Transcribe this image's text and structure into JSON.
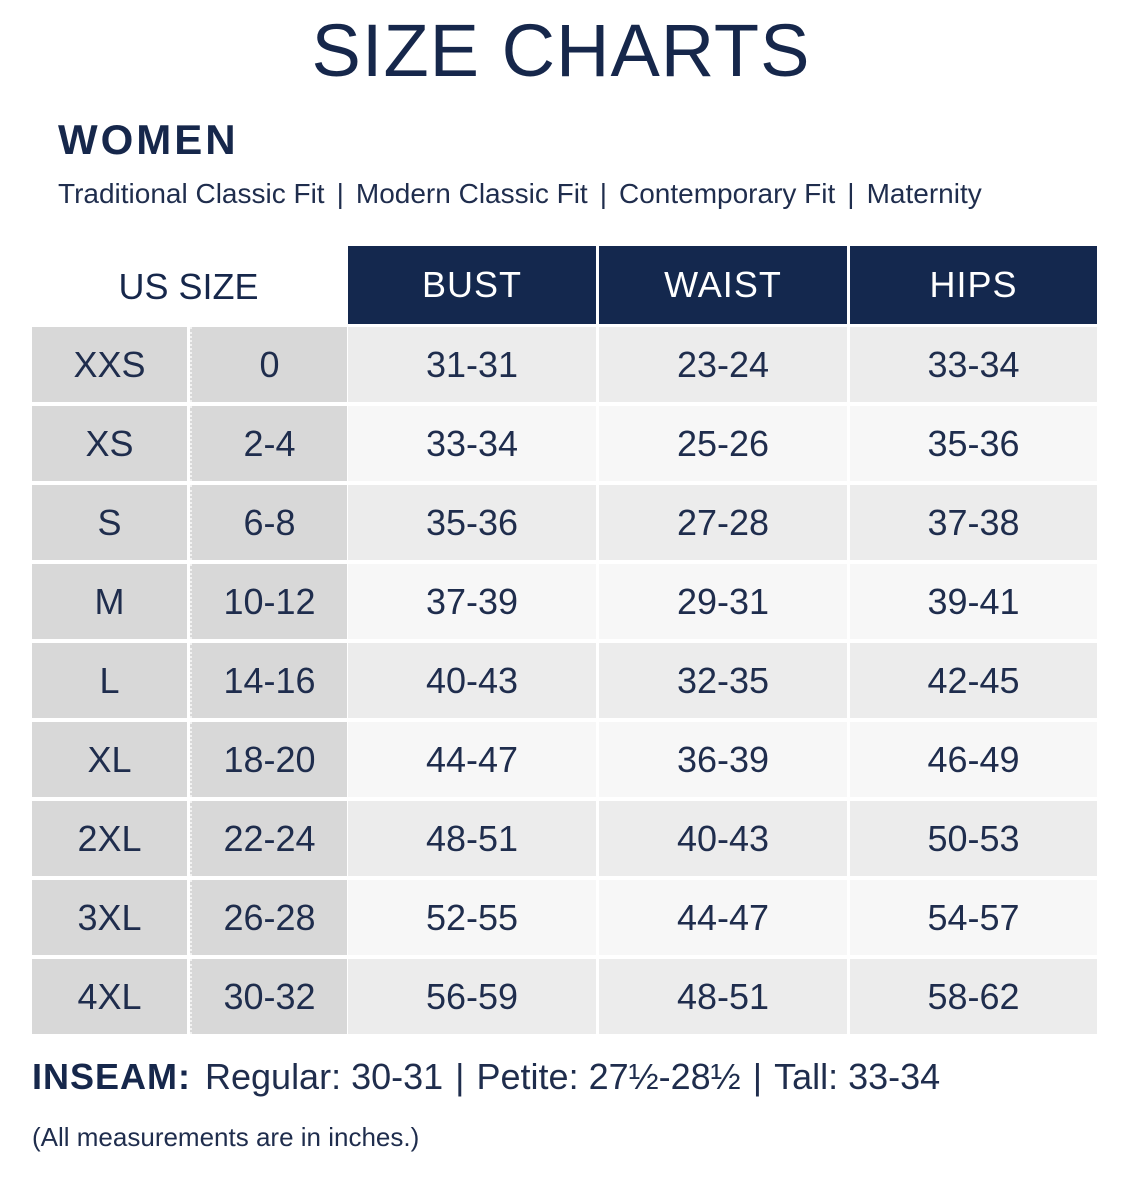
{
  "title": "SIZE CHARTS",
  "section": "WOMEN",
  "fits": [
    "Traditional Classic Fit",
    "Modern Classic Fit",
    "Contemporary Fit",
    "Maternity"
  ],
  "fit_separator": "|",
  "table": {
    "us_size_header": "US SIZE",
    "headers": [
      "BUST",
      "WAIST",
      "HIPS"
    ],
    "rows": [
      {
        "label": "XXS",
        "num": "0",
        "bust": "31-31",
        "waist": "23-24",
        "hips": "33-34"
      },
      {
        "label": "XS",
        "num": "2-4",
        "bust": "33-34",
        "waist": "25-26",
        "hips": "35-36"
      },
      {
        "label": "S",
        "num": "6-8",
        "bust": "35-36",
        "waist": "27-28",
        "hips": "37-38"
      },
      {
        "label": "M",
        "num": "10-12",
        "bust": "37-39",
        "waist": "29-31",
        "hips": "39-41"
      },
      {
        "label": "L",
        "num": "14-16",
        "bust": "40-43",
        "waist": "32-35",
        "hips": "42-45"
      },
      {
        "label": "XL",
        "num": "18-20",
        "bust": "44-47",
        "waist": "36-39",
        "hips": "46-49"
      },
      {
        "label": "2XL",
        "num": "22-24",
        "bust": "48-51",
        "waist": "40-43",
        "hips": "50-53"
      },
      {
        "label": "3XL",
        "num": "26-28",
        "bust": "52-55",
        "waist": "44-47",
        "hips": "54-57"
      },
      {
        "label": "4XL",
        "num": "30-32",
        "bust": "56-59",
        "waist": "48-51",
        "hips": "58-62"
      }
    ]
  },
  "inseam": {
    "label": "INSEAM:",
    "regular": "Regular: 30-31",
    "petite": "Petite: 27½-28½",
    "tall": "Tall: 33-34",
    "separator": "|"
  },
  "note": "(All measurements are in inches.)",
  "colors": {
    "header_bg": "#14284e",
    "text": "#16274b",
    "size_col_bg": "#d8d8d8"
  }
}
